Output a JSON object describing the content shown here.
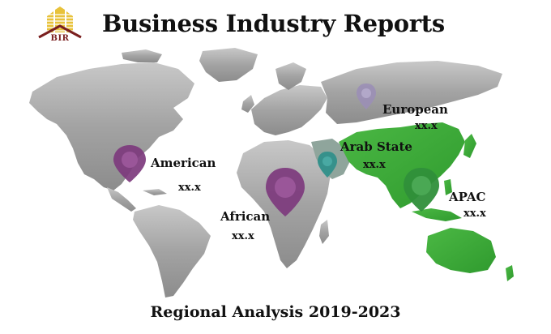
{
  "header": {
    "logo_text": "BIR",
    "title": "Business Industry Reports"
  },
  "footer": {
    "subtitle": "Regional Analysis 2019-2023"
  },
  "colors": {
    "highlight_region": "#3aa832",
    "land": "#9a9a9a",
    "pin_purple": "#7d3a7d",
    "pin_lavender": "#9b8fb5",
    "pin_teal": "#2f8f8a",
    "pin_green": "#2f8f3a"
  },
  "regions": [
    {
      "name": "American",
      "value": "xx.x",
      "pin_color": "pin_purple"
    },
    {
      "name": "European",
      "value": "xx.x",
      "pin_color": "pin_lavender"
    },
    {
      "name": "Arab State",
      "value": "xx.x",
      "pin_color": "pin_teal"
    },
    {
      "name": "African",
      "value": "xx.x",
      "pin_color": "pin_purple"
    },
    {
      "name": "APAC",
      "value": "xx.x",
      "pin_color": "pin_green"
    }
  ]
}
